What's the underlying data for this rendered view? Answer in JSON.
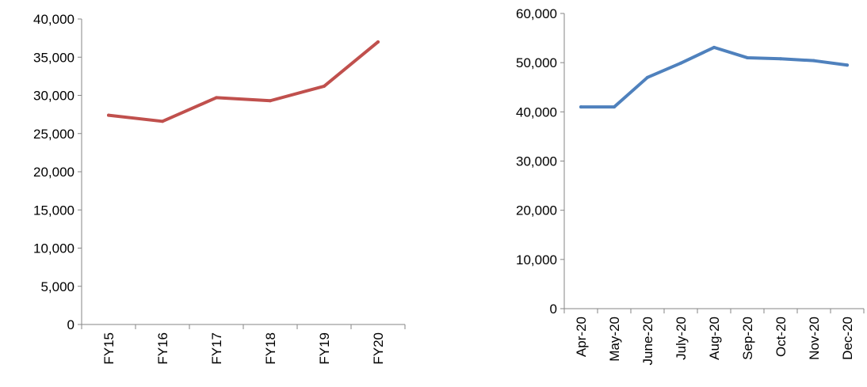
{
  "chart_data": [
    {
      "type": "line",
      "title": "",
      "xlabel": "",
      "ylabel": "",
      "categories": [
        "FY15",
        "FY16",
        "FY17",
        "FY18",
        "FY19",
        "FY20"
      ],
      "series": [
        {
          "values": [
            27400,
            26600,
            29700,
            29300,
            31200,
            37000
          ],
          "color": "#C0504D"
        }
      ],
      "ylim": [
        0,
        40000
      ],
      "yticks": [
        0,
        5000,
        10000,
        15000,
        20000,
        25000,
        30000,
        35000,
        40000
      ],
      "ytick_labels": [
        "0",
        "5,000",
        "10,000",
        "15,000",
        "20,000",
        "25,000",
        "30,000",
        "35,000",
        "40,000"
      ],
      "grid": false,
      "legend": "none"
    },
    {
      "type": "line",
      "title": "",
      "xlabel": "",
      "ylabel": "",
      "categories": [
        "Apr-20",
        "May-20",
        "June-20",
        "July-20",
        "Aug-20",
        "Sep-20",
        "Oct-20",
        "Nov-20",
        "Dec-20"
      ],
      "series": [
        {
          "values": [
            41000,
            41000,
            47000,
            49900,
            53100,
            51000,
            50800,
            50400,
            49500
          ],
          "color": "#4F81BD"
        }
      ],
      "ylim": [
        0,
        60000
      ],
      "yticks": [
        0,
        10000,
        20000,
        30000,
        40000,
        50000,
        60000
      ],
      "ytick_labels": [
        "0",
        "10,000",
        "20,000",
        "30,000",
        "40,000",
        "50,000",
        "60,000"
      ],
      "grid": false,
      "legend": "none"
    }
  ]
}
